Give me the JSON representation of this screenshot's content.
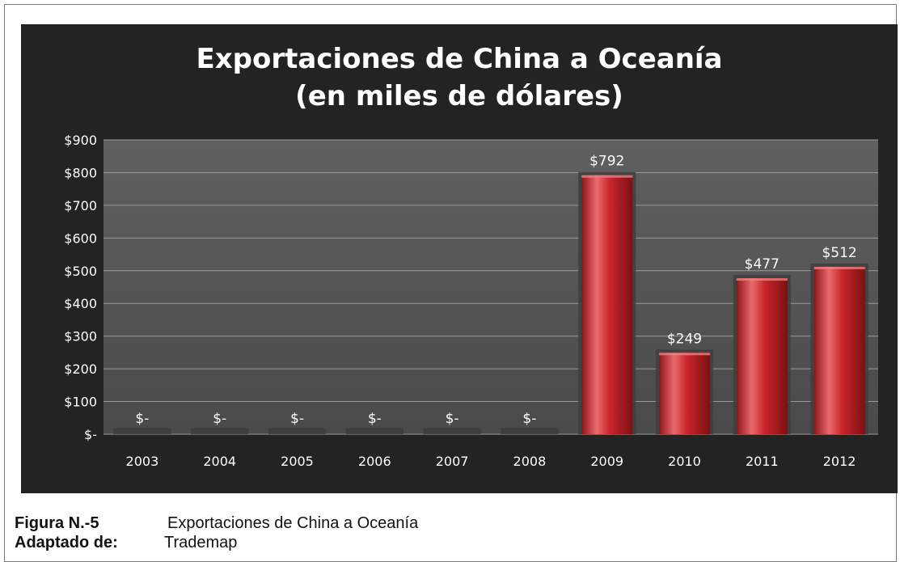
{
  "chart_data": {
    "type": "bar",
    "title_lines": [
      "Exportaciones de China a Oceanía",
      "(en miles de dólares)"
    ],
    "categories": [
      "2003",
      "2004",
      "2005",
      "2006",
      "2007",
      "2008",
      "2009",
      "2010",
      "2011",
      "2012"
    ],
    "values": [
      0,
      0,
      0,
      0,
      0,
      0,
      792,
      249,
      477,
      512
    ],
    "data_labels": [
      "$-",
      "$-",
      "$-",
      "$-",
      "$-",
      "$-",
      "$792",
      "$249",
      "$477",
      "$512"
    ],
    "ylim": [
      0,
      900
    ],
    "yticks": [
      0,
      100,
      200,
      300,
      400,
      500,
      600,
      700,
      800,
      900
    ],
    "ytick_labels": [
      "$-",
      "$100",
      "$200",
      "$300",
      "$400",
      "$500",
      "$600",
      "$700",
      "$800",
      "$900"
    ],
    "grid": true,
    "legend": "none",
    "colors": {
      "background": "#232323",
      "plot_area": "#595959",
      "bar": "#c8262b",
      "bar_highlight": "#ec6a6c",
      "text": "#ffffff"
    }
  },
  "caption": {
    "figure_label": "Figura N.-5",
    "figure_text": "Exportaciones de China a Oceanía",
    "source_label": "Adaptado de:",
    "source_text": "Trademap"
  }
}
